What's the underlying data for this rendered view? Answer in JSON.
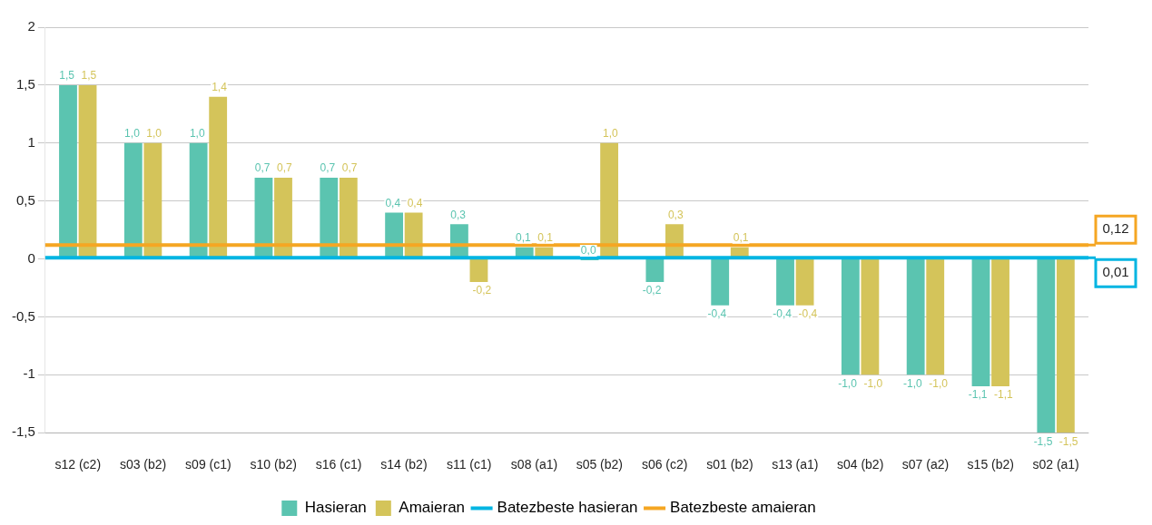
{
  "chart_data": {
    "type": "bar",
    "categories": [
      "s12 (c2)",
      "s03 (b2)",
      "s09 (c1)",
      "s10 (b2)",
      "s16 (c1)",
      "s14 (b2)",
      "s11 (c1)",
      "s08 (a1)",
      "s05 (b2)",
      "s06 (c2)",
      "s01 (b2)",
      "s13 (a1)",
      "s04 (b2)",
      "s07 (a2)",
      "s15 (b2)",
      "s02 (a1)"
    ],
    "series": [
      {
        "name": "Hasieran",
        "color": "#5bc4b0",
        "values": [
          1.5,
          1.0,
          1.0,
          0.7,
          0.7,
          0.4,
          0.3,
          0.1,
          0.0,
          -0.2,
          -0.4,
          -0.4,
          -1.0,
          -1.0,
          -1.1,
          -1.5
        ],
        "value_labels": [
          "1,5",
          "1,0",
          "1,0",
          "0,7",
          "0,7",
          "0,4",
          "0,3",
          "0,1",
          "0,0",
          "-0,2",
          "-0,4",
          "-0,4",
          "-1,0",
          "-1,0",
          "-1,1",
          "-1,5"
        ]
      },
      {
        "name": "Amaieran",
        "color": "#d4c45a",
        "values": [
          1.5,
          1.0,
          1.4,
          0.7,
          0.7,
          0.4,
          -0.2,
          0.1,
          1.0,
          0.3,
          0.1,
          -0.4,
          -1.0,
          -1.0,
          -1.1,
          -1.5
        ],
        "value_labels": [
          "1,5",
          "1,0",
          "1,4",
          "0,7",
          "0,7",
          "0,4",
          "-0,2",
          "0,1",
          "1,0",
          "0,3",
          "0,1",
          "-0,4",
          "-1,0",
          "-1,0",
          "-1,1",
          "-1,5"
        ]
      }
    ],
    "ylim": [
      -1.5,
      2
    ],
    "yticks": [
      {
        "value": -1.5,
        "label": "-1,5"
      },
      {
        "value": -1,
        "label": "-1"
      },
      {
        "value": -0.5,
        "label": "-0,5"
      },
      {
        "value": 0,
        "label": "0"
      },
      {
        "value": 0.5,
        "label": "0,5"
      },
      {
        "value": 1,
        "label": "1"
      },
      {
        "value": 1.5,
        "label": "1,5"
      },
      {
        "value": 2,
        "label": "2"
      }
    ],
    "ref_lines": [
      {
        "axis": "y",
        "value": 0.01,
        "label": "Batezbeste hasieran",
        "color": "#00b5e2"
      },
      {
        "axis": "y",
        "value": 0.12,
        "label": "Batezbeste amaieran",
        "color": "#f5a623"
      }
    ],
    "annotations": [
      "0,01",
      "0,12"
    ],
    "grid": "y",
    "legend": "bottom"
  }
}
